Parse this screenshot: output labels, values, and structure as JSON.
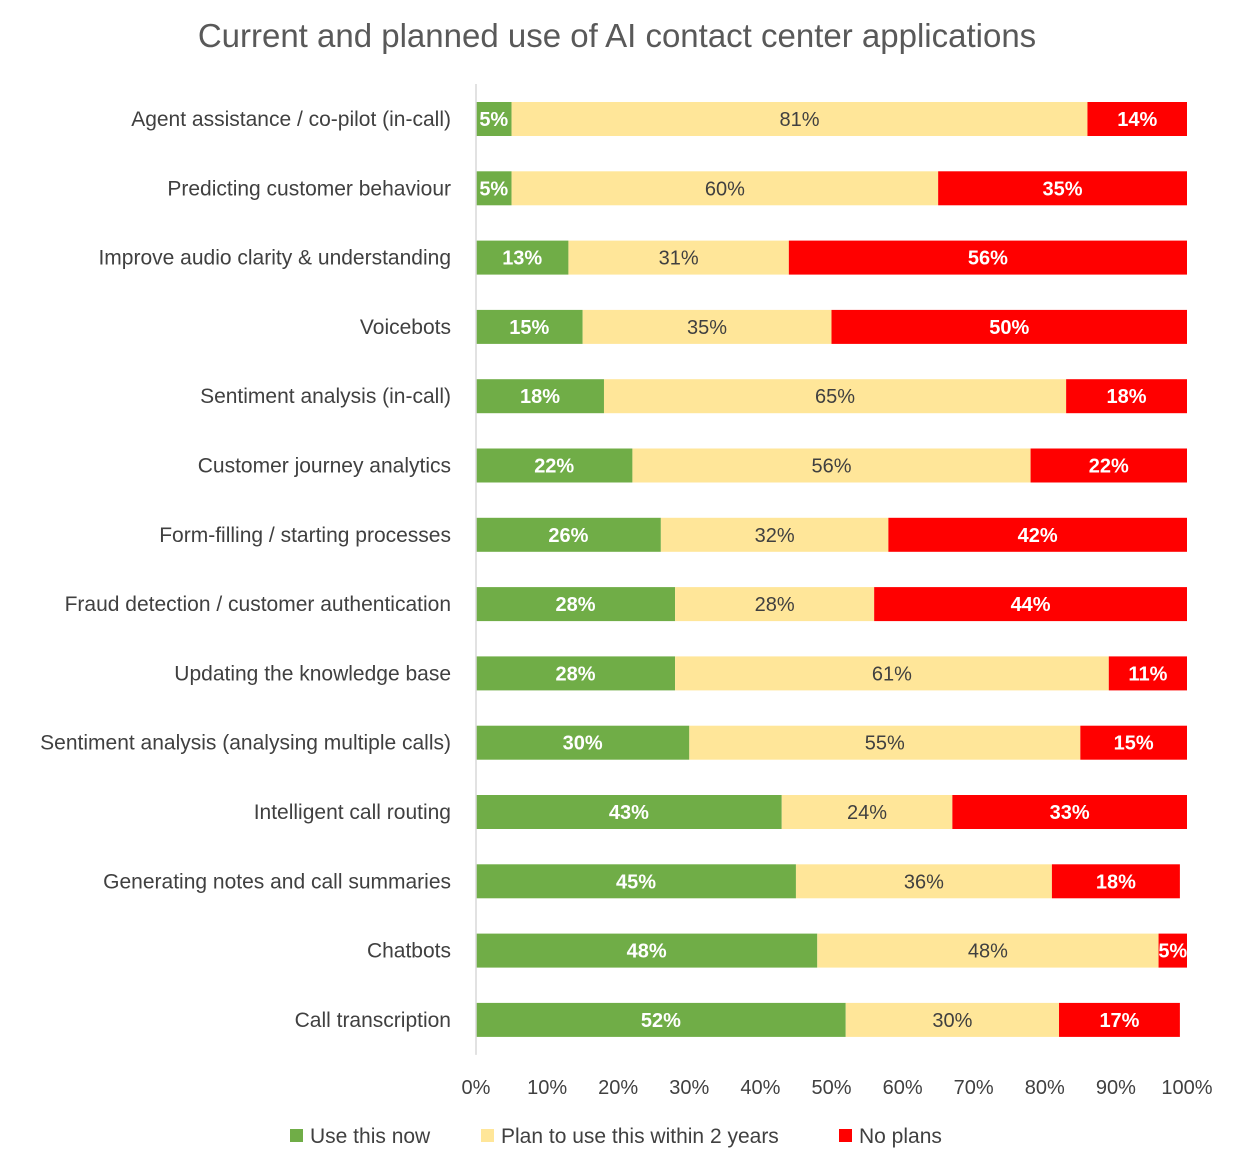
{
  "chart_data": {
    "type": "bar",
    "orientation": "horizontal",
    "stacked": true,
    "normalized_percent": true,
    "title": "Current and planned use of AI contact center applications",
    "xlabel": "",
    "ylabel": "",
    "xlim": [
      0,
      100
    ],
    "x_tick_labels": [
      "0%",
      "10%",
      "20%",
      "30%",
      "40%",
      "50%",
      "60%",
      "70%",
      "80%",
      "90%",
      "100%"
    ],
    "grid": false,
    "legend_position": "bottom",
    "categories": [
      "Agent assistance / co-pilot (in-call)",
      "Predicting customer behaviour",
      "Improve audio clarity & understanding",
      "Voicebots",
      "Sentiment analysis (in-call)",
      "Customer journey analytics",
      "Form-filling / starting processes",
      "Fraud detection / customer authentication",
      "Updating the knowledge base",
      "Sentiment analysis (analysing multiple calls)",
      "Intelligent call routing",
      "Generating notes and call summaries",
      "Chatbots",
      "Call transcription"
    ],
    "series": [
      {
        "name": "Use this now",
        "color": "#70ad47",
        "label_color": "#ffffff",
        "values": [
          5,
          5,
          13,
          15,
          18,
          22,
          26,
          28,
          28,
          30,
          43,
          45,
          48,
          52
        ],
        "labels": [
          "5%",
          "5%",
          "13%",
          "15%",
          "18%",
          "22%",
          "26%",
          "28%",
          "28%",
          "30%",
          "43%",
          "45%",
          "48%",
          "52%"
        ]
      },
      {
        "name": "Plan to use this within 2 years",
        "color": "#ffe699",
        "label_color": "#404040",
        "values": [
          81,
          60,
          31,
          35,
          65,
          56,
          32,
          28,
          61,
          55,
          24,
          36,
          48,
          30
        ],
        "labels": [
          "81%",
          "60%",
          "31%",
          "35%",
          "65%",
          "56%",
          "32%",
          "28%",
          "61%",
          "55%",
          "24%",
          "36%",
          "48%",
          "30%"
        ]
      },
      {
        "name": "No plans",
        "color": "#ff0000",
        "label_color": "#ffffff",
        "values": [
          14,
          35,
          56,
          50,
          18,
          22,
          42,
          44,
          11,
          15,
          33,
          18,
          5,
          17
        ],
        "labels": [
          "14%",
          "35%",
          "56%",
          "50%",
          "18%",
          "22%",
          "42%",
          "44%",
          "11%",
          "15%",
          "33%",
          "18%",
          "5%",
          "17%"
        ]
      }
    ]
  }
}
